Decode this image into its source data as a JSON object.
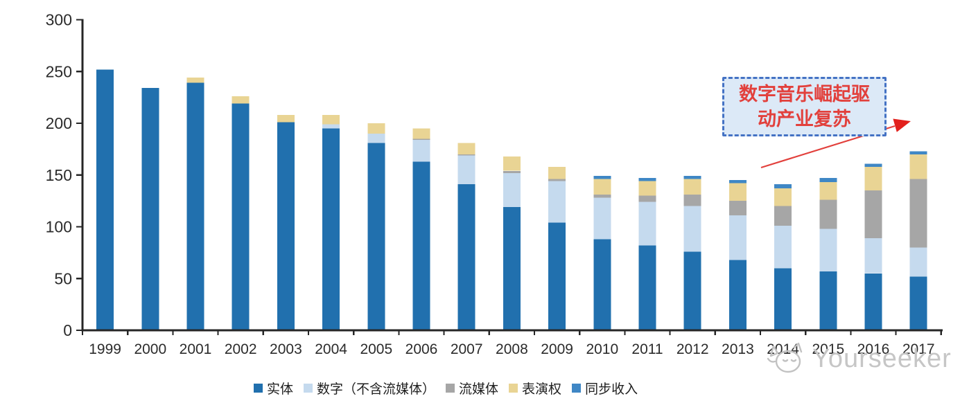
{
  "chart_data": {
    "type": "bar",
    "stacked": true,
    "title": "",
    "xlabel": "",
    "ylabel": "",
    "grid": false,
    "legend_position": "bottom",
    "ylim": [
      0,
      300
    ],
    "yticks": [
      0,
      50,
      100,
      150,
      200,
      250,
      300
    ],
    "categories": [
      "1999",
      "2000",
      "2001",
      "2002",
      "2003",
      "2004",
      "2005",
      "2006",
      "2007",
      "2008",
      "2009",
      "2010",
      "2011",
      "2012",
      "2013",
      "2014",
      "2015",
      "2016",
      "2017"
    ],
    "series": [
      {
        "name": "实体",
        "color": "#2170AE",
        "values": [
          252,
          234,
          239,
          219,
          201,
          195,
          181,
          163,
          141,
          119,
          104,
          88,
          82,
          76,
          68,
          60,
          57,
          55,
          52
        ]
      },
      {
        "name": "数字（不含流媒体）",
        "color": "#C5DAEE",
        "values": [
          0,
          0,
          0,
          0,
          0,
          4,
          9,
          21,
          28,
          33,
          40,
          40,
          42,
          44,
          43,
          41,
          41,
          34,
          28
        ]
      },
      {
        "name": "流媒体",
        "color": "#A6A6A6",
        "values": [
          0,
          0,
          0,
          0,
          0,
          0,
          0,
          1,
          1,
          2,
          2,
          3,
          6,
          11,
          14,
          19,
          28,
          46,
          66
        ]
      },
      {
        "name": "表演权",
        "color": "#E9D494",
        "values": [
          0,
          0,
          5,
          7,
          7,
          9,
          10,
          10,
          11,
          14,
          12,
          15,
          14,
          15,
          17,
          17,
          17,
          23,
          24
        ]
      },
      {
        "name": "同步收入",
        "color": "#3F87C5",
        "values": [
          0,
          0,
          0,
          0,
          0,
          0,
          0,
          0,
          0,
          0,
          0,
          3,
          3,
          3,
          3,
          4,
          4,
          3,
          3
        ]
      }
    ]
  },
  "annotation": {
    "line1": "数字音乐崛起驱",
    "line2": "动产业复苏",
    "border_color": "#4472C4",
    "fill_color": "#DCE9F7",
    "text_color": "#E2403C",
    "arrow_color": "#E2403C"
  },
  "watermark": {
    "text": "Yourseeker",
    "color": "#C6C6C6"
  }
}
